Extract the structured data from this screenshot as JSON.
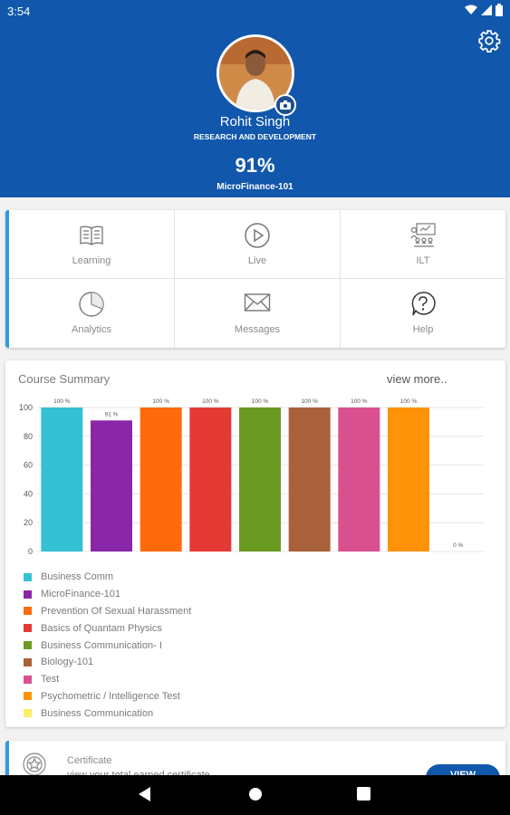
{
  "status_bar": {
    "time": "3:54"
  },
  "profile": {
    "name": "Rohit Singh",
    "department": "RESEARCH AND DEVELOPMENT",
    "progress_percent": "91%",
    "course": "MicroFinance-101"
  },
  "menu": [
    {
      "label": "Learning",
      "icon": "book-icon"
    },
    {
      "label": "Live",
      "icon": "play-circle-icon"
    },
    {
      "label": "ILT",
      "icon": "classroom-icon"
    },
    {
      "label": "Analytics",
      "icon": "pie-chart-icon"
    },
    {
      "label": "Messages",
      "icon": "envelope-icon"
    },
    {
      "label": "Help",
      "icon": "question-bubble-icon"
    }
  ],
  "summary": {
    "title": "Course Summary",
    "view_more": "view more.."
  },
  "chart_data": {
    "type": "bar",
    "categories": [
      "Business Comm",
      "MicroFinance-101",
      "Prevention Of Sexual Harassment",
      "Basics of Quantam Physics",
      "Business Communication- I",
      "Biology-101",
      "Test",
      "Psychometric / Intelligence Test",
      "Business Communication"
    ],
    "values": [
      100,
      91,
      100,
      100,
      100,
      100,
      100,
      100,
      0
    ],
    "data_labels": [
      "100 %",
      "91 %",
      "100 %",
      "100 %",
      "100 %",
      "100 %",
      "100 %",
      "100 %",
      "0 %"
    ],
    "colors": [
      "#35c0d3",
      "#8a26a8",
      "#ff6a0d",
      "#e53935",
      "#6a9a22",
      "#a9613a",
      "#d9508f",
      "#ff9308",
      "#f9ee6a"
    ],
    "ylim": [
      0,
      100
    ],
    "yticks": [
      0,
      20,
      40,
      60,
      80,
      100
    ],
    "grid": true,
    "legend": "bottom"
  },
  "certificate": {
    "title": "Certificate",
    "subtitle": "view your total earned certificate",
    "button": "VIEW"
  },
  "accent_color": "#1157ac"
}
